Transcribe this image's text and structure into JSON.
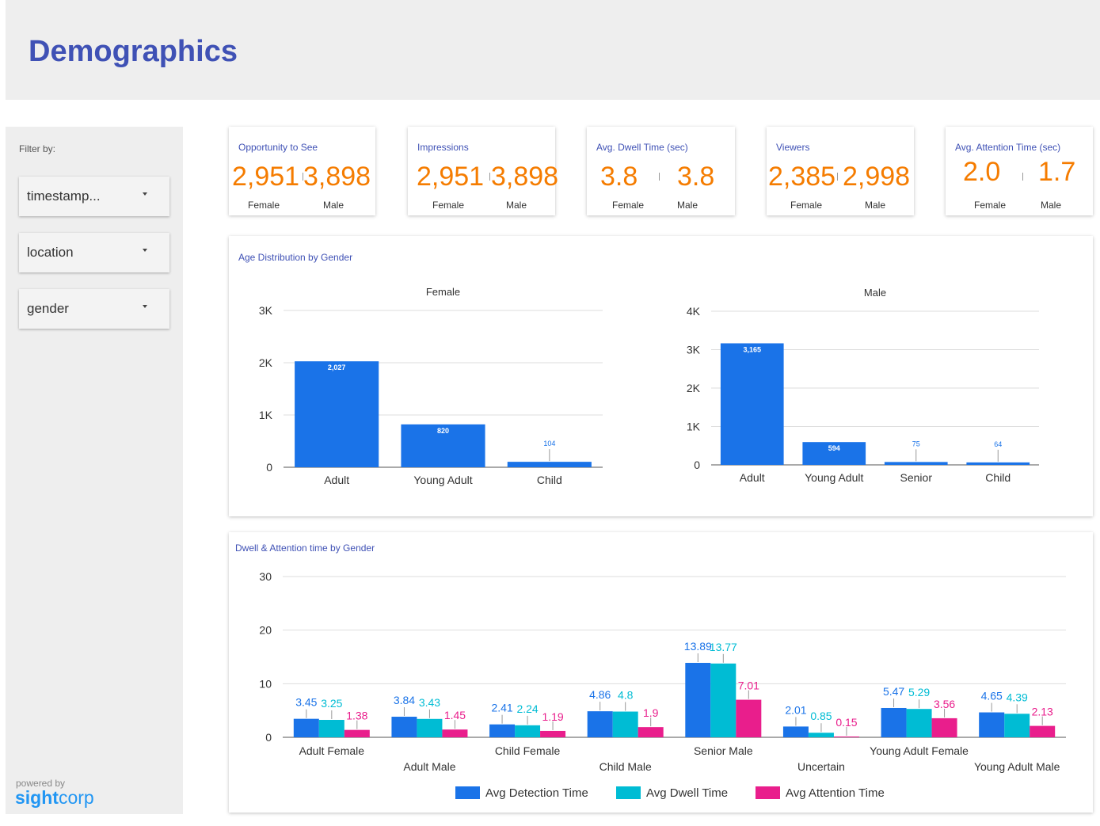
{
  "header": {
    "title": "Demographics"
  },
  "sidebar": {
    "filter_label": "Filter by:",
    "filters": [
      {
        "label": "timestamp..."
      },
      {
        "label": "location"
      },
      {
        "label": "gender"
      }
    ],
    "powered_by": "powered by",
    "logo_sight": "sight",
    "logo_corp": "corp"
  },
  "kpis": [
    {
      "title": "Opportunity to See",
      "female": "2,951",
      "male": "3,898",
      "female_label": "Female",
      "male_label": "Male"
    },
    {
      "title": "Impressions",
      "female": "2,951",
      "male": "3,898",
      "female_label": "Female",
      "male_label": "Male"
    },
    {
      "title": "Avg. Dwell Time (sec)",
      "female": "3.8",
      "male": "3.8",
      "female_label": "Female",
      "male_label": "Male"
    },
    {
      "title": "Viewers",
      "female": "2,385",
      "male": "2,998",
      "female_label": "Female",
      "male_label": "Male"
    },
    {
      "title": "Avg. Attention Time (sec)",
      "female": "2.0",
      "male": "1.7",
      "female_label": "Female",
      "male_label": "Male"
    }
  ],
  "age_chart": {
    "title": "Age Distribution by Gender"
  },
  "dwell_chart": {
    "title": "Dwell & Attention time by Gender"
  },
  "colors": {
    "primary": "#3f51b5",
    "kpi": "#f57c00",
    "blue": "#1a73e8",
    "cyan": "#00bcd4",
    "pink": "#e91e8c"
  },
  "chart_data": [
    {
      "type": "bar",
      "title": "Female",
      "categories": [
        "Adult",
        "Young Adult",
        "Child"
      ],
      "values": [
        2027,
        820,
        104
      ],
      "data_labels": [
        "2,027",
        "820",
        "104"
      ],
      "ylim": [
        0,
        3000
      ],
      "yticks": [
        0,
        1000,
        2000,
        3000
      ],
      "ytick_labels": [
        "0",
        "1K",
        "2K",
        "3K"
      ],
      "grid": true
    },
    {
      "type": "bar",
      "title": "Male",
      "categories": [
        "Adult",
        "Young Adult",
        "Senior",
        "Child"
      ],
      "values": [
        3165,
        594,
        75,
        64
      ],
      "data_labels": [
        "3,165",
        "594",
        "75",
        "64"
      ],
      "ylim": [
        0,
        4000
      ],
      "yticks": [
        0,
        1000,
        2000,
        3000,
        4000
      ],
      "ytick_labels": [
        "0",
        "1K",
        "2K",
        "3K",
        "4K"
      ],
      "grid": true
    },
    {
      "type": "bar",
      "categories": [
        "Adult Female",
        "Adult Male",
        "Child Female",
        "Child Male",
        "Senior Male",
        "Uncertain",
        "Young Adult Female",
        "Young Adult Male"
      ],
      "series": [
        {
          "name": "Avg Detection Time",
          "values": [
            3.45,
            3.84,
            2.41,
            4.86,
            13.89,
            2.01,
            5.47,
            4.65
          ],
          "labels": [
            "3.45",
            "3.84",
            "2.41",
            "4.86",
            "13.89",
            "2.01",
            "5.47",
            "4.65"
          ]
        },
        {
          "name": "Avg Dwell Time",
          "values": [
            3.25,
            3.43,
            2.24,
            4.8,
            13.77,
            0.85,
            5.29,
            4.39
          ],
          "labels": [
            "3.25",
            "3.43",
            "2.24",
            "4.8",
            "13.77",
            "0.85",
            "5.29",
            "4.39"
          ]
        },
        {
          "name": "Avg Attention Time",
          "values": [
            1.38,
            1.45,
            1.19,
            1.9,
            7.01,
            0.15,
            3.56,
            2.13
          ],
          "labels": [
            "1.38",
            "1.45",
            "1.19",
            "1.9",
            "7.01",
            "0.15",
            "3.56",
            "2.13"
          ]
        }
      ],
      "ylim": [
        0,
        30
      ],
      "yticks": [
        0,
        10,
        20,
        30
      ],
      "ytick_labels": [
        "0",
        "10",
        "20",
        "30"
      ],
      "grid": true,
      "legend": "bottom"
    }
  ]
}
